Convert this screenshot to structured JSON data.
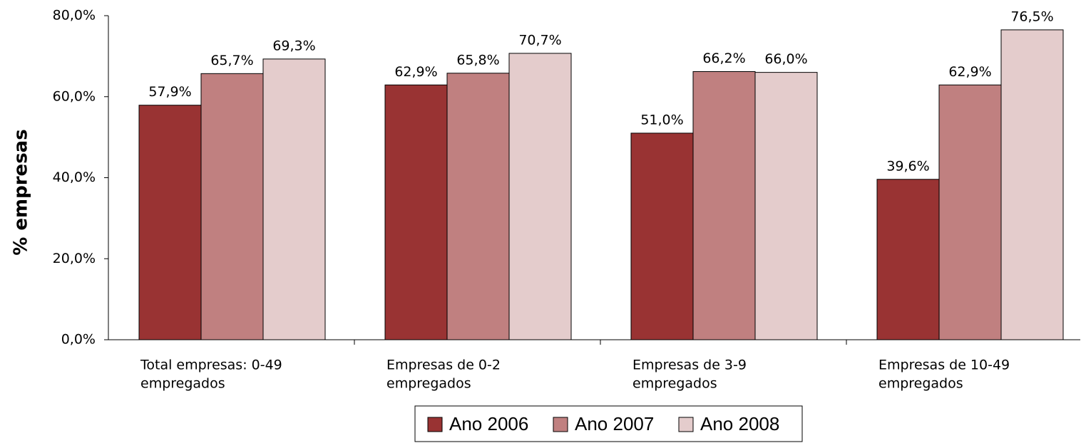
{
  "chart_data": {
    "type": "bar",
    "y_label": "% empresas",
    "categories": [
      [
        "Total empresas: 0-49",
        "empregados"
      ],
      [
        "Empresas de 0-2",
        "empregados"
      ],
      [
        "Empresas de 3-9",
        "empregados"
      ],
      [
        "Empresas de 10-49",
        "empregados"
      ]
    ],
    "series": [
      {
        "name": "Ano 2006",
        "color": "#993333",
        "values": [
          57.9,
          62.9,
          51.0,
          39.6
        ],
        "value_labels": [
          "57,9%",
          "62,9%",
          "51,0%",
          "39,6%"
        ]
      },
      {
        "name": "Ano 2007",
        "color": "#c08080",
        "values": [
          65.7,
          65.8,
          66.2,
          62.9
        ],
        "value_labels": [
          "65,7%",
          "65,8%",
          "66,2%",
          "62,9%"
        ]
      },
      {
        "name": "Ano 2008",
        "color": "#e4cccc",
        "values": [
          69.3,
          70.7,
          66.0,
          76.5
        ],
        "value_labels": [
          "69,3%",
          "70,7%",
          "66,0%",
          "76,5%"
        ]
      }
    ],
    "ylim": [
      0,
      80
    ],
    "yticks": [
      {
        "value": 0,
        "label": "0,0%"
      },
      {
        "value": 20,
        "label": "20,0%"
      },
      {
        "value": 40,
        "label": "40,0%"
      },
      {
        "value": 60,
        "label": "60,0%"
      },
      {
        "value": 80,
        "label": "80,0%"
      }
    ],
    "grid": false,
    "legend": "bottom"
  }
}
